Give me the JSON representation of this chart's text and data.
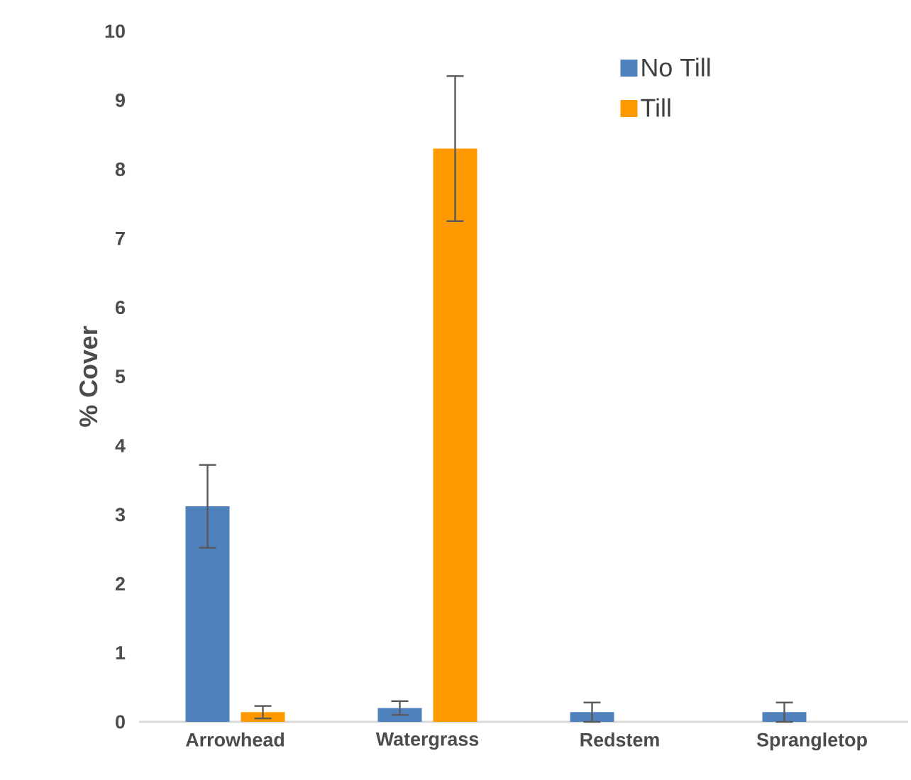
{
  "chart_data": {
    "type": "bar",
    "ylabel": "% Cover",
    "categories": [
      "Arrowhead",
      "Watergrass",
      "Redstem",
      "Sprangletop"
    ],
    "series": [
      {
        "name": "No Till",
        "color": "#4f81bd",
        "values": [
          3.12,
          0.2,
          0.14,
          0.14
        ],
        "errors": [
          0.6,
          0.1,
          0.14,
          0.14
        ]
      },
      {
        "name": "Till",
        "color": "#ff9900",
        "values": [
          0.14,
          8.3,
          0,
          0
        ],
        "errors": [
          0.09,
          1.05,
          null,
          null
        ]
      }
    ],
    "ylim": [
      0,
      10
    ],
    "yticks": [
      0,
      1,
      2,
      3,
      4,
      5,
      6,
      7,
      8,
      9,
      10
    ],
    "grid": false,
    "legend": "top right"
  }
}
